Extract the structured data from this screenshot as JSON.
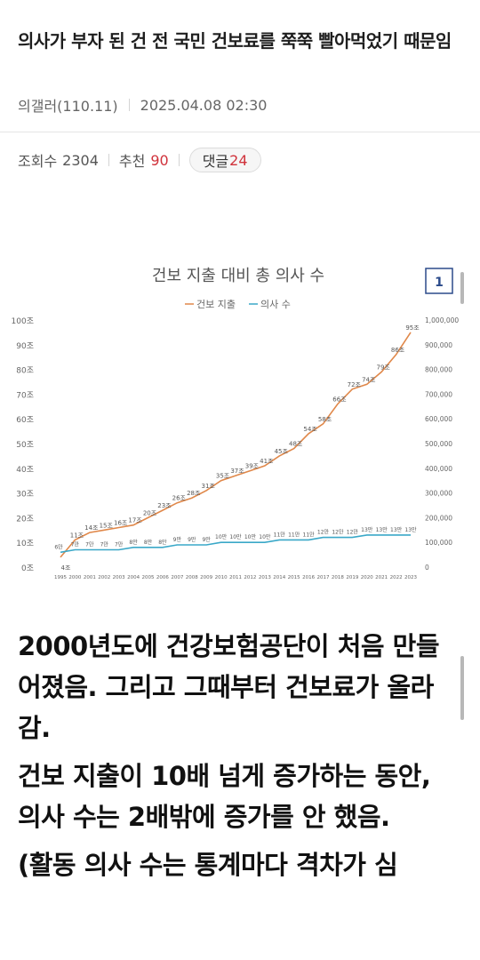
{
  "post": {
    "title": "의사가 부자 된 건 전 국민 건보료를 쭉쭉 빨아먹었기 때문임",
    "author": "의갤러(110.11)",
    "date": "2025.04.08 02:30"
  },
  "stats": {
    "views_label": "조회수",
    "views": "2304",
    "recommend_label": "추천",
    "recommend": "90",
    "comments_label": "댓글",
    "comments": "24"
  },
  "colors": {
    "spending": "#e0884a",
    "doctors": "#3aa8c8",
    "accent_red": "#d0323b"
  },
  "chart_data": {
    "type": "line",
    "title": "건보 지출 대비 총 의사 수",
    "badge": "1",
    "legend": [
      "건보 지출",
      "의사 수"
    ],
    "legend_position": "top",
    "x": [
      "1995",
      "2000",
      "2001",
      "2002",
      "2003",
      "2004",
      "2005",
      "2006",
      "2007",
      "2008",
      "2009",
      "2010",
      "2011",
      "2012",
      "2013",
      "2014",
      "2015",
      "2016",
      "2017",
      "2018",
      "2019",
      "2020",
      "2021",
      "2022",
      "2023"
    ],
    "y_left_ticks": [
      "0조",
      "10조",
      "20조",
      "30조",
      "40조",
      "50조",
      "60조",
      "70조",
      "80조",
      "90조",
      "100조"
    ],
    "y_left_range": [
      0,
      100
    ],
    "y_right_ticks": [
      "0",
      "100,000",
      "200,000",
      "300,000",
      "400,000",
      "500,000",
      "600,000",
      "700,000",
      "800,000",
      "900,000",
      "1,000,000"
    ],
    "y_right_range": [
      0,
      1000000
    ],
    "grid": false,
    "series": [
      {
        "name": "건보 지출",
        "axis": "left",
        "values": [
          4,
          11,
          14,
          15,
          16,
          17,
          20,
          23,
          26,
          28,
          31,
          35,
          37,
          39,
          41,
          45,
          48,
          54,
          58,
          66,
          72,
          74,
          79,
          86,
          95
        ],
        "labels": [
          "4조",
          "11조",
          "14조",
          "15조",
          "16조",
          "17조",
          "20조",
          "23조",
          "26조",
          "28조",
          "31조",
          "35조",
          "37조",
          "39조",
          "41조",
          "45조",
          "48조",
          "54조",
          "58조",
          "66조",
          "72조",
          "74조",
          "79조",
          "86조",
          "95조"
        ]
      },
      {
        "name": "의사 수",
        "axis": "right",
        "values": [
          60000,
          70000,
          70000,
          70000,
          70000,
          80000,
          80000,
          80000,
          90000,
          90000,
          90000,
          100000,
          100000,
          100000,
          100000,
          110000,
          110000,
          110000,
          120000,
          120000,
          120000,
          130000,
          130000,
          130000,
          130000
        ],
        "labels": [
          "6만",
          "7만",
          "7만",
          "7만",
          "7만",
          "8만",
          "8만",
          "8만",
          "9만",
          "9만",
          "9만",
          "10만",
          "10만",
          "10만",
          "10만",
          "11만",
          "11만",
          "11만",
          "12만",
          "12만",
          "12만",
          "13만",
          "13만",
          "13만",
          "13만"
        ]
      }
    ]
  },
  "body": {
    "p1": "2000년도에 건강보험공단이 처음 만들어졌음. 그리고 그때부터 건보료가 올라감.",
    "p2": "건보 지출이 10배 넘게 증가하는 동안, 의사 수는 2배밖에 증가를 안 했음.",
    "p3": "(활동 의사 수는 통계마다 격차가 심"
  }
}
